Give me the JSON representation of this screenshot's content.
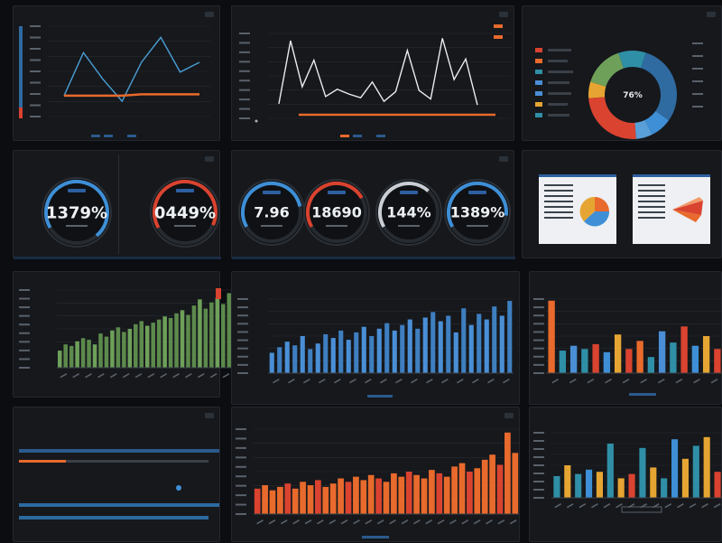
{
  "colors": {
    "orange": "#e86a2c",
    "blue": "#4a8fd6",
    "red": "#d9432f",
    "green": "#6ea05a",
    "yellow": "#e6a532",
    "teal": "#2f8fa6"
  },
  "panels": {
    "top_left": {
      "title": "",
      "button": ""
    },
    "top_mid": {
      "title": "",
      "button": ""
    },
    "top_right": {
      "title": "",
      "button": ""
    },
    "gauges_left": {
      "title": "",
      "button": ""
    },
    "gauges_mid": {
      "title": "",
      "button": ""
    },
    "reports": {
      "title": "",
      "button": ""
    },
    "green_bars": {
      "title": "",
      "button": ""
    },
    "blue_bars": {
      "title": "",
      "button": ""
    },
    "mixed_bars": {
      "title": "",
      "button": ""
    },
    "progress": {
      "title": "",
      "button": ""
    },
    "orange_bars": {
      "title": "",
      "button": ""
    },
    "yellow_bars": {
      "title": "",
      "button": ""
    }
  },
  "gauges": [
    {
      "value": "1379%",
      "fraction": 0.72,
      "color": "#3e8fd6"
    },
    {
      "value": "0449%",
      "fraction": 0.65,
      "color": "#d9432f"
    },
    {
      "value": "7.96",
      "fraction": 0.55,
      "color": "#3e8fd6"
    },
    {
      "value": "18690",
      "fraction": 0.5,
      "color": "#d9432f"
    },
    {
      "value": "144%",
      "fraction": 0.45,
      "color": "#c9ced4"
    },
    {
      "value": "1389%",
      "fraction": 0.6,
      "color": "#3e8fd6"
    }
  ],
  "donut_center": "76%",
  "chart_data": [
    {
      "type": "line",
      "series": [
        {
          "values": [
            1.5,
            4.6,
            2.7,
            1.1,
            3.9,
            5.7,
            3.2,
            3.9
          ]
        },
        {
          "values": [
            1.5,
            1.5,
            1.5,
            1.5,
            1.6,
            1.6,
            1.6,
            1.6
          ]
        }
      ]
    },
    {
      "type": "line",
      "series": [
        {
          "values": [
            1.2,
            6.4,
            2.6,
            4.8,
            1.8,
            2.4,
            2.0,
            1.7,
            3.0,
            1.4,
            2.2,
            5.6,
            2.3,
            1.6,
            6.6,
            3.2,
            4.9,
            1.1
          ]
        },
        {
          "values": [
            0.4,
            0.4,
            0.4,
            0.4,
            0.4,
            0.4,
            0.4,
            0.4,
            0.4,
            0.4,
            0.4,
            0.4,
            0.4,
            0.4,
            0.4,
            0.4,
            0.4,
            0.4
          ]
        }
      ]
    },
    {
      "type": "pie",
      "values": [
        30,
        8,
        6,
        25,
        6,
        15,
        10
      ]
    },
    {
      "type": "bar",
      "values": [
        22,
        30,
        28,
        34,
        38,
        36,
        30,
        44,
        40,
        48,
        52,
        46,
        50,
        56,
        60,
        54,
        58,
        62,
        66,
        64,
        70,
        74,
        68,
        80,
        88,
        76,
        84,
        90,
        82,
        96
      ]
    },
    {
      "type": "bar",
      "values": [
        22,
        28,
        34,
        30,
        40,
        26,
        32,
        42,
        38,
        46,
        36,
        44,
        50,
        40,
        48,
        54,
        46,
        52,
        58,
        48,
        60,
        66,
        56,
        62,
        44,
        70,
        52,
        64,
        58,
        72,
        62,
        78
      ]
    },
    {
      "type": "bar",
      "values": [
        90,
        28,
        34,
        30,
        36,
        26,
        48,
        30,
        40,
        20,
        52,
        38,
        58,
        34,
        46,
        30
      ]
    },
    {
      "type": "bar",
      "values": [
        30,
        34,
        28,
        32,
        36,
        30,
        38,
        34,
        40,
        32,
        36,
        42,
        38,
        44,
        40,
        46,
        42,
        38,
        48,
        44,
        50,
        46,
        42,
        52,
        48,
        44,
        56,
        60,
        50,
        54,
        64,
        70,
        58,
        96,
        72
      ]
    },
    {
      "type": "bar",
      "values": [
        20,
        30,
        22,
        26,
        24,
        50,
        18,
        22,
        46,
        28,
        18,
        54,
        36,
        48,
        56,
        24
      ]
    }
  ]
}
